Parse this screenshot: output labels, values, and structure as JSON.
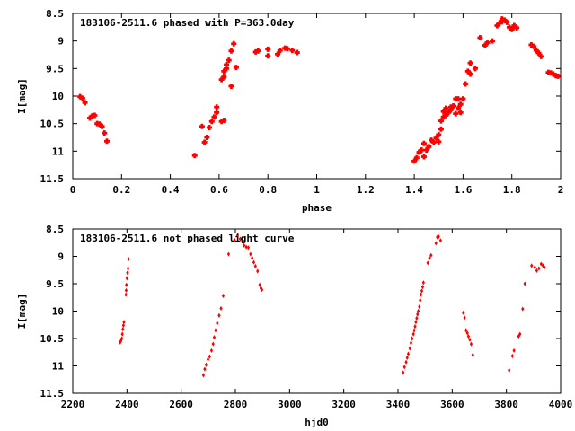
{
  "colors": {
    "marker": "#ff0000",
    "axis": "#000000",
    "background": "#ffffff"
  },
  "chart_data": [
    {
      "type": "scatter",
      "title": "183106-2511.6 phased with P=363.0day",
      "xlabel": "phase",
      "ylabel": "I[mag]",
      "xlim": [
        0,
        2
      ],
      "ylim": [
        11.5,
        8.5
      ],
      "y_inverted": true,
      "marker": "cross",
      "xticks": [
        0,
        0.2,
        0.4,
        0.6,
        0.8,
        1,
        1.2,
        1.4,
        1.6,
        1.8,
        2
      ],
      "xtick_labels": [
        "0",
        "0.2",
        "0.4",
        "0.6",
        "0.8",
        "1",
        "1.2",
        "1.4",
        "1.6",
        "1.8",
        "2"
      ],
      "yticks": [
        8.5,
        9,
        9.5,
        10,
        10.5,
        11,
        11.5
      ],
      "ytick_labels": [
        "8.5",
        "9",
        "9.5",
        "10",
        "10.5",
        "11",
        "11.5"
      ],
      "points": [
        [
          0.03,
          10.01
        ],
        [
          0.04,
          10.04
        ],
        [
          0.05,
          10.12
        ],
        [
          0.07,
          10.4
        ],
        [
          0.08,
          10.36
        ],
        [
          0.09,
          10.35
        ],
        [
          0.1,
          10.5
        ],
        [
          0.11,
          10.51
        ],
        [
          0.12,
          10.55
        ],
        [
          0.13,
          10.67
        ],
        [
          0.14,
          10.82
        ],
        [
          0.5,
          11.08
        ],
        [
          0.53,
          10.55
        ],
        [
          0.54,
          10.84
        ],
        [
          0.55,
          10.75
        ],
        [
          0.56,
          10.57
        ],
        [
          0.57,
          10.46
        ],
        [
          0.58,
          10.38
        ],
        [
          0.59,
          10.3
        ],
        [
          0.59,
          10.2
        ],
        [
          0.61,
          10.46
        ],
        [
          0.62,
          10.44
        ],
        [
          0.61,
          9.7
        ],
        [
          0.62,
          9.65
        ],
        [
          0.62,
          9.55
        ],
        [
          0.63,
          9.5
        ],
        [
          0.63,
          9.43
        ],
        [
          0.64,
          9.35
        ],
        [
          0.65,
          9.82
        ],
        [
          0.65,
          9.18
        ],
        [
          0.66,
          9.05
        ],
        [
          0.67,
          9.48
        ],
        [
          0.75,
          9.2
        ],
        [
          0.76,
          9.18
        ],
        [
          0.8,
          9.15
        ],
        [
          0.8,
          9.27
        ],
        [
          0.84,
          9.24
        ],
        [
          0.85,
          9.17
        ],
        [
          0.87,
          9.13
        ],
        [
          0.88,
          9.14
        ],
        [
          0.9,
          9.17
        ],
        [
          0.92,
          9.21
        ],
        [
          1.4,
          11.18
        ],
        [
          1.41,
          11.12
        ],
        [
          1.42,
          11.02
        ],
        [
          1.43,
          10.98
        ],
        [
          1.44,
          11.1
        ],
        [
          1.44,
          10.86
        ],
        [
          1.45,
          10.98
        ],
        [
          1.46,
          10.92
        ],
        [
          1.47,
          10.8
        ],
        [
          1.48,
          10.84
        ],
        [
          1.49,
          10.76
        ],
        [
          1.5,
          10.83
        ],
        [
          1.5,
          10.7
        ],
        [
          1.51,
          10.6
        ],
        [
          1.51,
          10.45
        ],
        [
          1.52,
          10.38
        ],
        [
          1.52,
          10.28
        ],
        [
          1.53,
          10.22
        ],
        [
          1.53,
          10.35
        ],
        [
          1.54,
          10.3
        ],
        [
          1.55,
          10.25
        ],
        [
          1.55,
          10.2
        ],
        [
          1.56,
          10.18
        ],
        [
          1.57,
          10.05
        ],
        [
          1.57,
          10.32
        ],
        [
          1.58,
          10.22
        ],
        [
          1.58,
          10.05
        ],
        [
          1.59,
          10.15
        ],
        [
          1.59,
          10.3
        ],
        [
          1.6,
          10.05
        ],
        [
          1.61,
          9.78
        ],
        [
          1.62,
          9.55
        ],
        [
          1.63,
          9.6
        ],
        [
          1.63,
          9.4
        ],
        [
          1.65,
          9.5
        ],
        [
          1.67,
          8.94
        ],
        [
          1.69,
          9.08
        ],
        [
          1.7,
          9.03
        ],
        [
          1.72,
          9.0
        ],
        [
          1.74,
          8.72
        ],
        [
          1.75,
          8.67
        ],
        [
          1.76,
          8.6
        ],
        [
          1.76,
          8.65
        ],
        [
          1.77,
          8.62
        ],
        [
          1.78,
          8.66
        ],
        [
          1.79,
          8.75
        ],
        [
          1.8,
          8.79
        ],
        [
          1.81,
          8.72
        ],
        [
          1.82,
          8.76
        ],
        [
          1.88,
          9.07
        ],
        [
          1.89,
          9.1
        ],
        [
          1.9,
          9.17
        ],
        [
          1.91,
          9.22
        ],
        [
          1.92,
          9.28
        ],
        [
          1.95,
          9.57
        ],
        [
          1.96,
          9.58
        ],
        [
          1.97,
          9.6
        ],
        [
          1.98,
          9.63
        ],
        [
          1.99,
          9.64
        ]
      ]
    },
    {
      "type": "scatter",
      "title": "183106-2511.6 not phased light curve",
      "xlabel": "hjd0",
      "ylabel": "I[mag]",
      "xlim": [
        2200,
        4000
      ],
      "ylim": [
        11.5,
        8.5
      ],
      "y_inverted": true,
      "marker": "diamond",
      "xticks": [
        2200,
        2400,
        2600,
        2800,
        3000,
        3200,
        3400,
        3600,
        3800,
        4000
      ],
      "xtick_labels": [
        "2200",
        "2400",
        "2600",
        "2800",
        "3000",
        "3200",
        "3400",
        "3600",
        "3800",
        "4000"
      ],
      "yticks": [
        8.5,
        9,
        9.5,
        10,
        10.5,
        11,
        11.5
      ],
      "ytick_labels": [
        "8.5",
        "9",
        "9.5",
        "10",
        "10.5",
        "11",
        "11.5"
      ],
      "points": [
        [
          2375,
          10.57
        ],
        [
          2378,
          10.54
        ],
        [
          2381,
          10.5
        ],
        [
          2383,
          10.42
        ],
        [
          2385,
          10.33
        ],
        [
          2387,
          10.26
        ],
        [
          2389,
          10.2
        ],
        [
          2396,
          9.7
        ],
        [
          2397,
          9.62
        ],
        [
          2398,
          9.52
        ],
        [
          2400,
          9.4
        ],
        [
          2402,
          9.3
        ],
        [
          2404,
          9.22
        ],
        [
          2406,
          9.05
        ],
        [
          2682,
          11.17
        ],
        [
          2687,
          11.06
        ],
        [
          2692,
          10.98
        ],
        [
          2699,
          10.88
        ],
        [
          2705,
          10.83
        ],
        [
          2712,
          10.72
        ],
        [
          2718,
          10.6
        ],
        [
          2722,
          10.48
        ],
        [
          2727,
          10.35
        ],
        [
          2733,
          10.22
        ],
        [
          2740,
          10.08
        ],
        [
          2747,
          9.95
        ],
        [
          2755,
          9.72
        ],
        [
          2775,
          8.96
        ],
        [
          2797,
          8.7
        ],
        [
          2808,
          8.62
        ],
        [
          2818,
          8.68
        ],
        [
          2826,
          8.72
        ],
        [
          2832,
          8.8
        ],
        [
          2840,
          8.83
        ],
        [
          2848,
          8.84
        ],
        [
          2856,
          8.96
        ],
        [
          2862,
          9.03
        ],
        [
          2868,
          9.11
        ],
        [
          2874,
          9.18
        ],
        [
          2882,
          9.27
        ],
        [
          2890,
          9.52
        ],
        [
          2894,
          9.58
        ],
        [
          2898,
          9.61
        ],
        [
          3419,
          11.12
        ],
        [
          3424,
          11.02
        ],
        [
          3430,
          10.93
        ],
        [
          3434,
          10.85
        ],
        [
          3438,
          10.78
        ],
        [
          3444,
          10.68
        ],
        [
          3448,
          10.58
        ],
        [
          3452,
          10.5
        ],
        [
          3457,
          10.42
        ],
        [
          3460,
          10.35
        ],
        [
          3463,
          10.28
        ],
        [
          3466,
          10.2
        ],
        [
          3469,
          10.13
        ],
        [
          3472,
          10.06
        ],
        [
          3475,
          10.0
        ],
        [
          3479,
          9.92
        ],
        [
          3482,
          9.8
        ],
        [
          3485,
          9.7
        ],
        [
          3488,
          9.63
        ],
        [
          3491,
          9.56
        ],
        [
          3494,
          9.48
        ],
        [
          3510,
          9.12
        ],
        [
          3516,
          9.03
        ],
        [
          3522,
          8.98
        ],
        [
          3540,
          8.76
        ],
        [
          3545,
          8.65
        ],
        [
          3550,
          8.64
        ],
        [
          3557,
          8.71
        ],
        [
          3641,
          10.03
        ],
        [
          3646,
          10.12
        ],
        [
          3651,
          10.35
        ],
        [
          3656,
          10.4
        ],
        [
          3660,
          10.46
        ],
        [
          3665,
          10.52
        ],
        [
          3670,
          10.6
        ],
        [
          3676,
          10.8
        ],
        [
          3810,
          11.08
        ],
        [
          3822,
          10.82
        ],
        [
          3828,
          10.72
        ],
        [
          3845,
          10.46
        ],
        [
          3850,
          10.42
        ],
        [
          3860,
          9.96
        ],
        [
          3868,
          9.5
        ],
        [
          3893,
          9.17
        ],
        [
          3905,
          9.2
        ],
        [
          3912,
          9.26
        ],
        [
          3920,
          9.22
        ],
        [
          3928,
          9.14
        ],
        [
          3935,
          9.17
        ],
        [
          3940,
          9.2
        ]
      ]
    }
  ]
}
